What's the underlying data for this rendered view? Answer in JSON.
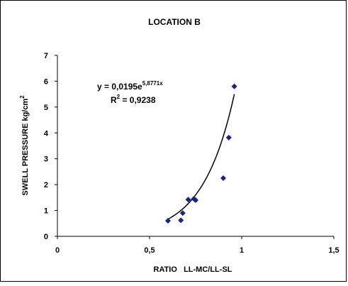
{
  "chart_data": {
    "type": "scatter",
    "title": "LOCATION B",
    "xlabel": "RATIO   LL-MC/LL-SL",
    "ylabel": "SWELL PRESSURE  kg/cm",
    "ylabel_sup": "2",
    "xlim": [
      0,
      1.5
    ],
    "ylim": [
      0,
      7
    ],
    "x_ticks": [
      0,
      0.5,
      1,
      1.5
    ],
    "x_tick_labels": [
      "0",
      "0,5",
      "1",
      "1,5"
    ],
    "y_ticks": [
      0,
      1,
      2,
      3,
      4,
      5,
      6,
      7
    ],
    "y_tick_labels": [
      "0",
      "1",
      "2",
      "3",
      "4",
      "5",
      "6",
      "7"
    ],
    "grid": false,
    "marker_color": "#1a237e",
    "trendline_color": "#000000",
    "points": [
      {
        "x": 0.6,
        "y": 0.6
      },
      {
        "x": 0.67,
        "y": 0.62
      },
      {
        "x": 0.68,
        "y": 0.9
      },
      {
        "x": 0.71,
        "y": 1.42
      },
      {
        "x": 0.74,
        "y": 1.45
      },
      {
        "x": 0.75,
        "y": 1.4
      },
      {
        "x": 0.9,
        "y": 2.25
      },
      {
        "x": 0.93,
        "y": 3.82
      },
      {
        "x": 0.96,
        "y": 5.8
      }
    ],
    "trendline": {
      "type": "exponential",
      "a": 0.0195,
      "b": 5.8771,
      "x_from": 0.6,
      "x_to": 0.96
    },
    "equation": {
      "prefix": "y = 0,0195e",
      "exponent": "5,8771x",
      "r2_prefix": "R",
      "r2_sup": "2",
      "r2_suffix": " = 0,9238"
    }
  }
}
